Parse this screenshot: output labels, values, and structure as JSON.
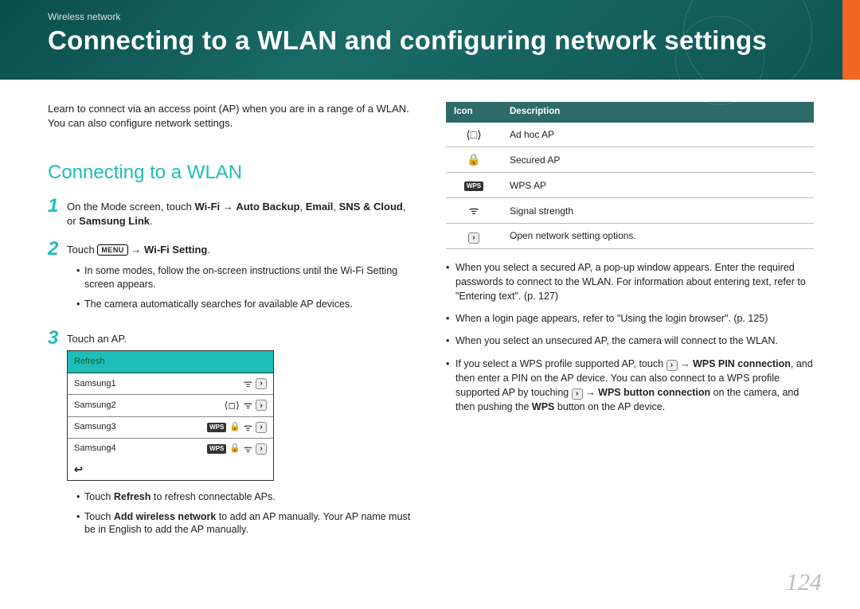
{
  "header": {
    "breadcrumb": "Wireless network",
    "title": "Connecting to a WLAN and configuring network settings"
  },
  "colors": {
    "header_bg": "#0f5551",
    "accent": "#1fbdb8",
    "orange": "#f26522",
    "table_header": "#2d6b69",
    "page_num_color": "#bbbbbb"
  },
  "left": {
    "intro": "Learn to connect via an access point (AP) when you are in a range of a WLAN. You can also configure network settings.",
    "h2": "Connecting to a WLAN",
    "step1_prefix": "On the Mode screen, touch ",
    "step1_b1": "Wi-Fi",
    "step1_arrow": " → ",
    "step1_b2": "Auto Backup",
    "step1_sep": ", ",
    "step1_b3": "Email",
    "step1_b4": "SNS & Cloud",
    "step1_or": ", or ",
    "step1_b5": "Samsung Link",
    "step1_end": ".",
    "step2_prefix": "Touch ",
    "step2_menu": "MENU",
    "step2_arrow": " → ",
    "step2_bold": "Wi-Fi Setting",
    "step2_end": ".",
    "step2_sub1": "In some modes, follow the on-screen instructions until the Wi-Fi Setting screen appears.",
    "step2_sub2": "The camera automatically searches for available AP devices.",
    "step3": "Touch an AP.",
    "ap_list": {
      "refresh": "Refresh",
      "rows": [
        {
          "name": "Samsung1",
          "icons": [
            "wifi",
            "chev"
          ]
        },
        {
          "name": "Samsung2",
          "icons": [
            "adhoc",
            "wifi",
            "chev"
          ]
        },
        {
          "name": "Samsung3",
          "icons": [
            "wps",
            "lock",
            "wifi",
            "chev"
          ]
        },
        {
          "name": "Samsung4",
          "icons": [
            "wps",
            "lock",
            "wifi",
            "chev"
          ]
        }
      ],
      "back_glyph": "↩"
    },
    "step3_sub1_a": "Touch ",
    "step3_sub1_b": "Refresh",
    "step3_sub1_c": " to refresh connectable APs.",
    "step3_sub2_a": "Touch ",
    "step3_sub2_b": "Add wireless network",
    "step3_sub2_c": " to add an AP manually. Your AP name must be in English to add the AP manually."
  },
  "right": {
    "table": {
      "h_icon": "Icon",
      "h_desc": "Description",
      "rows": [
        {
          "glyph": "⟨□⟩",
          "desc": "Ad hoc AP"
        },
        {
          "glyph": "🔒",
          "desc": "Secured AP"
        },
        {
          "glyph": "WPS",
          "desc": "WPS AP",
          "is_wps": true
        },
        {
          "glyph": "⊝",
          "desc": "Signal strength",
          "is_wifi": true
        },
        {
          "glyph": "›",
          "desc": "Open network setting options.",
          "is_chev": true
        }
      ]
    },
    "b1": "When you select a secured AP, a pop-up window appears. Enter the required passwords to connect to the WLAN. For information about entering text, refer to \"Entering text\". (p. 127)",
    "b2": "When a login page appears, refer to \"Using the login browser\". (p. 125)",
    "b3": "When you select an unsecured AP, the camera will connect to the WLAN.",
    "b4_a": "If you select a WPS profile supported AP, touch ",
    "b4_arrow": " → ",
    "b4_b": "WPS PIN connection",
    "b4_c": ", and then enter a PIN on the AP device. You can also connect to a WPS profile supported AP by touching ",
    "b4_d": "WPS button connection",
    "b4_e": " on the camera, and then pushing the ",
    "b4_f": "WPS",
    "b4_g": " button on the AP device."
  },
  "page_number": "124"
}
